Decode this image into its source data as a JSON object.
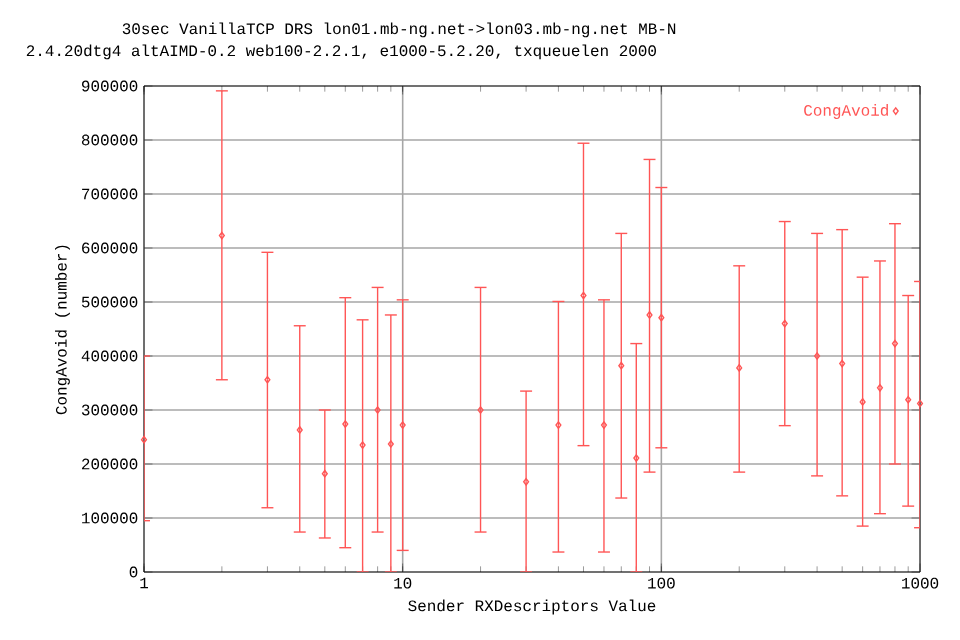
{
  "chart_data": {
    "type": "scatter",
    "title": "30sec VanillaTCP DRS lon01.mb-ng.net->lon03.mb-ng.net MB-N",
    "subtitle": "2.4.20dtg4 altAIMD-0.2 web100-2.2.1, e1000-5.2.20, txqueuelen 2000",
    "xlabel": "Sender RXDescriptors Value",
    "ylabel": "CongAvoid (number)",
    "log": "x",
    "xlim": [
      1,
      1000
    ],
    "xticks": [
      1,
      10,
      100,
      1000
    ],
    "ylim": [
      0,
      900000
    ],
    "yticks": [
      0,
      100000,
      200000,
      300000,
      400000,
      500000,
      600000,
      700000,
      800000,
      900000
    ],
    "grid": true,
    "legend": "top right",
    "marker": "diamond",
    "series": [
      {
        "name": "CongAvoid",
        "color": "#ff5555",
        "x": [
          1,
          2,
          3,
          4,
          5,
          6,
          7,
          8,
          9,
          10,
          20,
          30,
          40,
          50,
          60,
          70,
          80,
          90,
          100,
          200,
          300,
          400,
          500,
          600,
          700,
          800,
          900,
          1000
        ],
        "values": [
          245000,
          623000,
          356000,
          263000,
          182000,
          274000,
          235000,
          300000,
          237000,
          272000,
          300000,
          167000,
          272000,
          512000,
          272000,
          382000,
          211000,
          476000,
          471000,
          378000,
          460000,
          400000,
          386000,
          315000,
          341000,
          423000,
          319000,
          312000
        ],
        "errors": [
          [
            95000,
            400000
          ],
          [
            356000,
            891000
          ],
          [
            119000,
            592000
          ],
          [
            74000,
            456000
          ],
          [
            63000,
            300000
          ],
          [
            45000,
            508000
          ],
          [
            0,
            467000
          ],
          [
            74000,
            527000
          ],
          [
            0,
            476000
          ],
          [
            40000,
            504000
          ],
          [
            74000,
            527000
          ],
          [
            0,
            335000
          ],
          [
            37000,
            501000
          ],
          [
            234000,
            794000
          ],
          [
            37000,
            504000
          ],
          [
            137000,
            627000
          ],
          [
            0,
            423000
          ],
          [
            185000,
            764000
          ],
          [
            230000,
            712000
          ],
          [
            185000,
            567000
          ],
          [
            271000,
            649000
          ],
          [
            178000,
            627000
          ],
          [
            141000,
            634000
          ],
          [
            85000,
            546000
          ],
          [
            108000,
            576000
          ],
          [
            200000,
            645000
          ],
          [
            122000,
            512000
          ],
          [
            82000,
            538000
          ]
        ]
      }
    ]
  }
}
